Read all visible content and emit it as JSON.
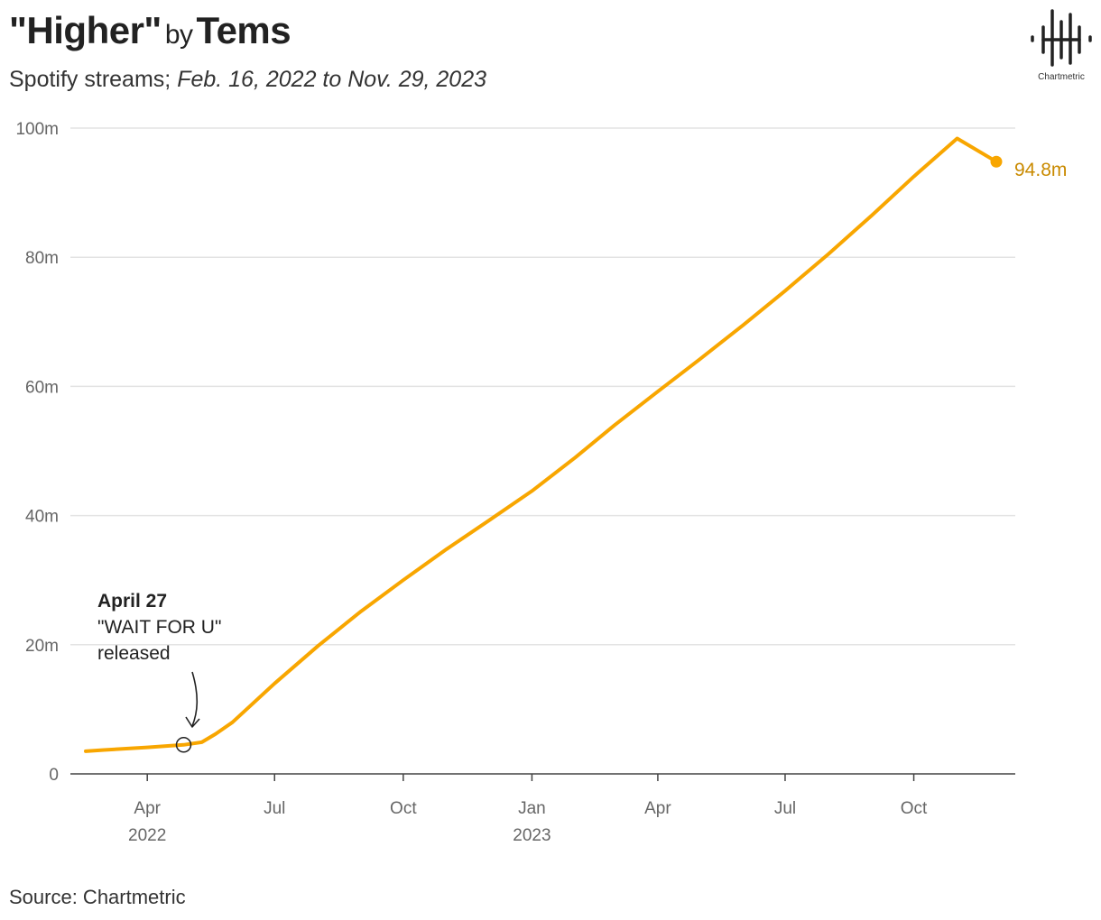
{
  "header": {
    "title_song": "\"Higher\"",
    "title_by": "by",
    "title_artist": "Tems",
    "subtitle_prefix": "Spotify streams;",
    "subtitle_range": "Feb. 16, 2022 to Nov. 29, 2023"
  },
  "logo": {
    "name": "Chartmetric"
  },
  "source": "Source: Chartmetric",
  "colors": {
    "line": "#F8A600",
    "end_label": "#C98A00",
    "grid": "#E3E3E3",
    "axis": "#666666"
  },
  "chart_data": {
    "type": "line",
    "xlabel": "",
    "ylabel": "",
    "ylim": [
      0,
      100
    ],
    "yunit": "m",
    "xlim": [
      "2022-02-16",
      "2023-11-29"
    ],
    "y_ticks": [
      {
        "value": 0,
        "label": "0"
      },
      {
        "value": 20,
        "label": "20m"
      },
      {
        "value": 40,
        "label": "40m"
      },
      {
        "value": 60,
        "label": "60m"
      },
      {
        "value": 80,
        "label": "80m"
      },
      {
        "value": 100,
        "label": "100m"
      }
    ],
    "x_ticks": [
      {
        "date": "2022-04-01",
        "label": "Apr",
        "year": "2022"
      },
      {
        "date": "2022-07-01",
        "label": "Jul",
        "year": ""
      },
      {
        "date": "2022-10-01",
        "label": "Oct",
        "year": ""
      },
      {
        "date": "2023-01-01",
        "label": "Jan",
        "year": "2023"
      },
      {
        "date": "2023-04-01",
        "label": "Apr",
        "year": ""
      },
      {
        "date": "2023-07-01",
        "label": "Jul",
        "year": ""
      },
      {
        "date": "2023-10-01",
        "label": "Oct",
        "year": ""
      }
    ],
    "series": [
      {
        "points": [
          [
            "2022-02-16",
            3.5
          ],
          [
            "2022-03-01",
            3.7
          ],
          [
            "2022-04-01",
            4.1
          ],
          [
            "2022-04-27",
            4.5
          ],
          [
            "2022-05-10",
            4.9
          ],
          [
            "2022-05-20",
            6.2
          ],
          [
            "2022-06-01",
            8.0
          ],
          [
            "2022-06-15",
            10.8
          ],
          [
            "2022-07-01",
            14.0
          ],
          [
            "2022-08-01",
            19.8
          ],
          [
            "2022-09-01",
            25.2
          ],
          [
            "2022-10-01",
            30.0
          ],
          [
            "2022-11-01",
            34.8
          ],
          [
            "2022-12-01",
            39.2
          ],
          [
            "2023-01-01",
            43.8
          ],
          [
            "2023-02-01",
            49.0
          ],
          [
            "2023-03-01",
            54.0
          ],
          [
            "2023-04-01",
            59.2
          ],
          [
            "2023-05-01",
            64.2
          ],
          [
            "2023-06-01",
            69.5
          ],
          [
            "2023-07-01",
            74.8
          ],
          [
            "2023-08-01",
            80.5
          ],
          [
            "2023-09-01",
            86.5
          ],
          [
            "2023-10-01",
            92.5
          ],
          [
            "2023-11-01",
            98.4
          ],
          [
            "2023-11-29",
            94.8
          ]
        ]
      }
    ],
    "end_label": "94.8m",
    "annotation": {
      "date": "2022-04-27",
      "value": 4.5,
      "title": "April 27",
      "line1": "\"WAIT FOR U\"",
      "line2": "released"
    }
  }
}
